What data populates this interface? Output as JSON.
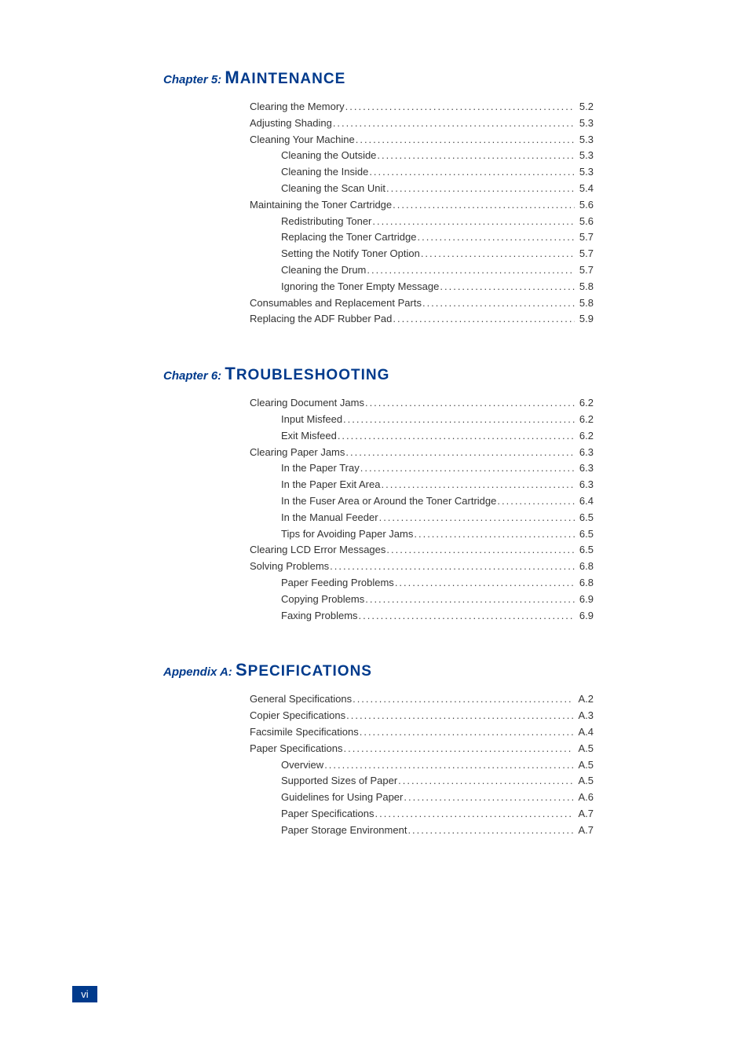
{
  "colors": {
    "heading": "#003a8c",
    "text": "#333333",
    "footer_bg": "#003a8c",
    "footer_text": "#ffffff",
    "background": "#ffffff"
  },
  "chapters": [
    {
      "label": "Chapter 5:",
      "title_first": "M",
      "title_rest": "AINTENANCE",
      "entries": [
        {
          "level": 0,
          "text": "Clearing the Memory",
          "page": "5.2"
        },
        {
          "level": 0,
          "text": "Adjusting Shading",
          "page": "5.3"
        },
        {
          "level": 0,
          "text": "Cleaning Your Machine",
          "page": "5.3"
        },
        {
          "level": 1,
          "text": "Cleaning the Outside",
          "page": "5.3"
        },
        {
          "level": 1,
          "text": "Cleaning the Inside",
          "page": "5.3"
        },
        {
          "level": 1,
          "text": "Cleaning the Scan Unit",
          "page": "5.4"
        },
        {
          "level": 0,
          "text": "Maintaining the Toner Cartridge",
          "page": "5.6"
        },
        {
          "level": 1,
          "text": "Redistributing Toner",
          "page": "5.6"
        },
        {
          "level": 1,
          "text": "Replacing the Toner Cartridge",
          "page": "5.7"
        },
        {
          "level": 1,
          "text": "Setting the Notify Toner Option",
          "page": "5.7"
        },
        {
          "level": 1,
          "text": "Cleaning the Drum",
          "page": "5.7"
        },
        {
          "level": 1,
          "text": "Ignoring the Toner Empty Message",
          "page": "5.8"
        },
        {
          "level": 0,
          "text": "Consumables and Replacement Parts",
          "page": "5.8"
        },
        {
          "level": 0,
          "text": "Replacing the ADF Rubber Pad",
          "page": "5.9"
        }
      ]
    },
    {
      "label": "Chapter 6:",
      "title_first": "T",
      "title_rest": "ROUBLESHOOTING",
      "entries": [
        {
          "level": 0,
          "text": "Clearing Document Jams",
          "page": "6.2"
        },
        {
          "level": 1,
          "text": "Input Misfeed",
          "page": "6.2"
        },
        {
          "level": 1,
          "text": "Exit Misfeed",
          "page": "6.2"
        },
        {
          "level": 0,
          "text": "Clearing Paper Jams",
          "page": "6.3"
        },
        {
          "level": 1,
          "text": "In the Paper Tray",
          "page": "6.3"
        },
        {
          "level": 1,
          "text": "In the Paper Exit Area",
          "page": "6.3"
        },
        {
          "level": 1,
          "text": "In the Fuser Area or Around the Toner Cartridge",
          "page": "6.4"
        },
        {
          "level": 1,
          "text": "In the Manual Feeder",
          "page": "6.5"
        },
        {
          "level": 1,
          "text": "Tips for Avoiding Paper Jams",
          "page": "6.5"
        },
        {
          "level": 0,
          "text": "Clearing LCD Error Messages",
          "page": "6.5"
        },
        {
          "level": 0,
          "text": "Solving Problems",
          "page": "6.8"
        },
        {
          "level": 1,
          "text": "Paper Feeding Problems",
          "page": "6.8"
        },
        {
          "level": 1,
          "text": "Copying Problems",
          "page": "6.9"
        },
        {
          "level": 1,
          "text": "Faxing Problems",
          "page": "6.9"
        }
      ]
    },
    {
      "label": "Appendix A:",
      "title_first": "S",
      "title_rest": "PECIFICATIONS",
      "entries": [
        {
          "level": 0,
          "text": "General Specifications",
          "page": "A.2"
        },
        {
          "level": 0,
          "text": "Copier Specifications",
          "page": "A.3"
        },
        {
          "level": 0,
          "text": "Facsimile Specifications",
          "page": "A.4"
        },
        {
          "level": 0,
          "text": "Paper Specifications",
          "page": "A.5"
        },
        {
          "level": 1,
          "text": "Overview",
          "page": "A.5"
        },
        {
          "level": 1,
          "text": "Supported Sizes of Paper",
          "page": "A.5"
        },
        {
          "level": 1,
          "text": "Guidelines for Using Paper",
          "page": "A.6"
        },
        {
          "level": 1,
          "text": "Paper Specifications",
          "page": "A.7"
        },
        {
          "level": 1,
          "text": "Paper Storage Environment",
          "page": "A.7"
        }
      ]
    }
  ],
  "footer_page": "vi"
}
